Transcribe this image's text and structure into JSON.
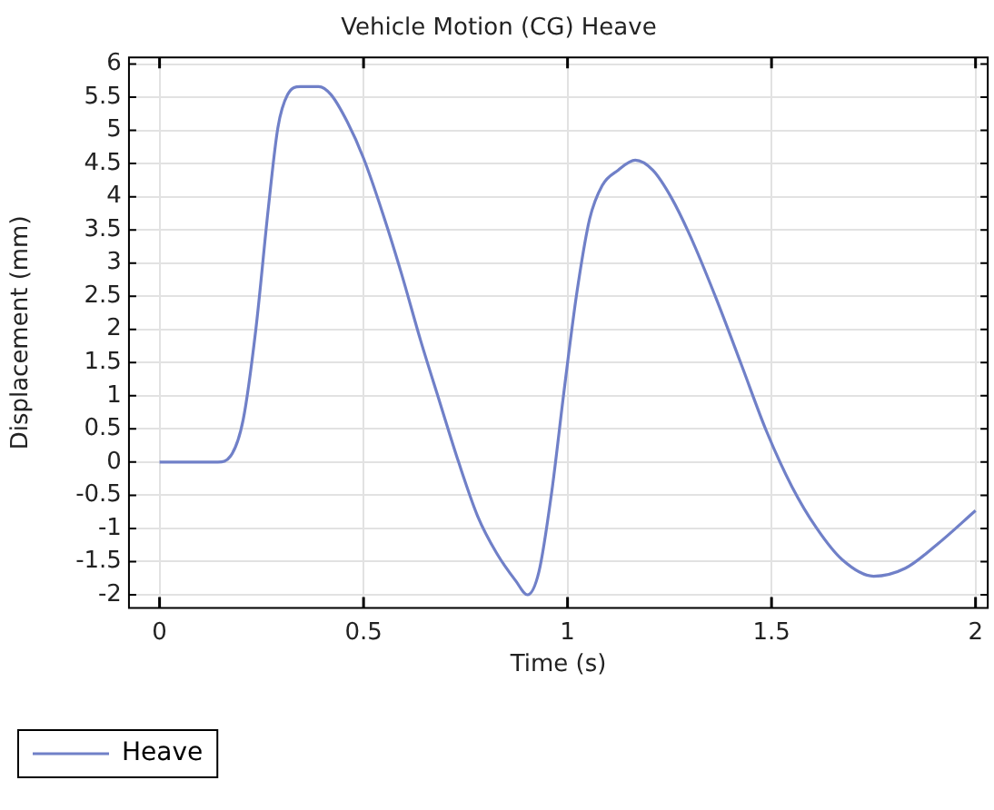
{
  "chart_data": {
    "type": "line",
    "title": "Vehicle Motion (CG) Heave",
    "xlabel": "Time (s)",
    "ylabel": "Displacement (mm)",
    "x": [
      0,
      0.143,
      0.174,
      0.205,
      0.236,
      0.267,
      0.29,
      0.314,
      0.345,
      0.39,
      0.42,
      0.46,
      0.5,
      0.547,
      0.593,
      0.64,
      0.686,
      0.733,
      0.78,
      0.826,
      0.873,
      0.902,
      0.93,
      0.961,
      0.992,
      1.023,
      1.054,
      1.085,
      1.124,
      1.166,
      1.209,
      1.255,
      1.302,
      1.364,
      1.426,
      1.488,
      1.55,
      1.611,
      1.673,
      1.75,
      1.828,
      1.906,
      2.0
    ],
    "series": [
      {
        "name": "Heave",
        "color": "#7080c8",
        "values": [
          0,
          0,
          0.09,
          0.64,
          2.0,
          3.85,
          5.04,
          5.54,
          5.66,
          5.66,
          5.54,
          5.13,
          4.58,
          3.75,
          2.84,
          1.83,
          0.92,
          0,
          -0.82,
          -1.37,
          -1.79,
          -2.0,
          -1.65,
          -0.46,
          1.1,
          2.56,
          3.66,
          4.17,
          4.4,
          4.55,
          4.4,
          3.98,
          3.39,
          2.47,
          1.47,
          0.46,
          -0.37,
          -1.0,
          -1.47,
          -1.72,
          -1.6,
          -1.24,
          -0.73
        ]
      }
    ],
    "xlim": [
      -0.075,
      2.03
    ],
    "xticks": [
      0,
      0.5,
      1,
      1.5,
      2
    ],
    "ylim": [
      -2.2,
      6.1
    ],
    "yticks": [
      -2,
      -1.5,
      -1,
      -0.5,
      0,
      0.5,
      1,
      1.5,
      2,
      2.5,
      3,
      3.5,
      4,
      4.5,
      5,
      5.5,
      6
    ],
    "grid": true,
    "legend": "bottom left",
    "marker": "none",
    "line_style": "solid"
  }
}
